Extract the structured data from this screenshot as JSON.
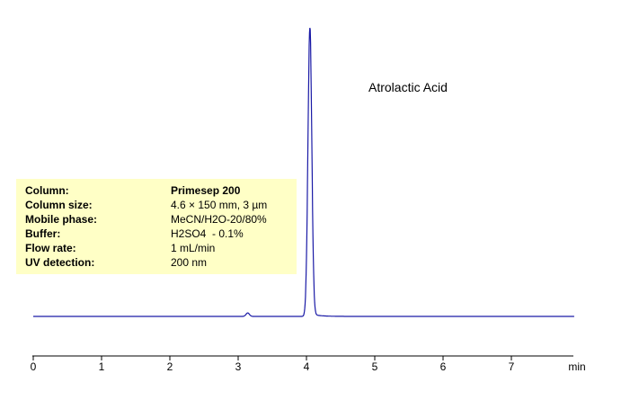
{
  "chart_data": {
    "type": "line",
    "x_unit": "min",
    "xlim": [
      0,
      8
    ],
    "xticks": [
      0,
      1,
      2,
      3,
      4,
      5,
      6,
      7
    ],
    "peaks": [
      {
        "label": "Atrolactic Acid",
        "x": 4.05,
        "height": 1.0
      },
      {
        "label": "",
        "x": 3.14,
        "height": 0.012
      }
    ],
    "line_color": "#1a1aa6",
    "grid": false,
    "legend": "none"
  },
  "info": [
    {
      "label": "Column:",
      "value": "Primesep 200",
      "bold_value": true
    },
    {
      "label": "Column size:",
      "value": "4.6 × 150 mm, 3 µm",
      "bold_value": false
    },
    {
      "label": "Mobile phase:",
      "value": "MeCN/H2O-20/80%",
      "bold_value": false
    },
    {
      "label": "Buffer:",
      "value": "H2SO4  - 0.1%",
      "bold_value": false
    },
    {
      "label": "Flow rate:",
      "value": "1 mL/min",
      "bold_value": false
    },
    {
      "label": "UV detection:",
      "value": "200 nm",
      "bold_value": false
    }
  ],
  "peak_label": "Atrolactic Acid",
  "colors": {
    "info_bg": "#ffffc6",
    "trace": "#1a1aa6"
  }
}
